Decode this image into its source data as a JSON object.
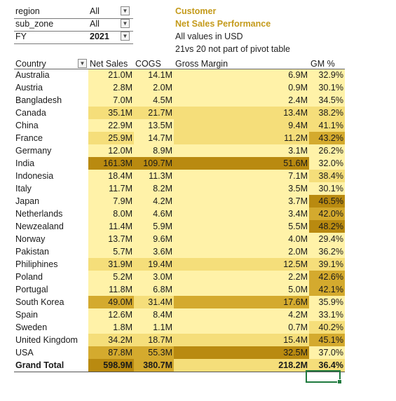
{
  "filters": [
    {
      "label": "region",
      "value": "All"
    },
    {
      "label": "sub_zone",
      "value": "All"
    },
    {
      "label": "FY",
      "value": "2021"
    }
  ],
  "titles": {
    "line1": "Customer",
    "line2": "Net Sales Performance",
    "note1": "All values in USD",
    "note2": "21vs 20 not part of pivot table"
  },
  "colors": {
    "low": "#fff2a8",
    "mid": "#f5de7a",
    "high": "#d4aa2e",
    "top": "#b98a10",
    "title": "#c49a1a"
  },
  "table": {
    "headers": {
      "country": "Country",
      "net_sales": "Net Sales",
      "cogs": "COGS",
      "gross_margin": "Gross Margin",
      "gm_pct": "GM %"
    },
    "rows": [
      {
        "country": "Australia",
        "net_sales": "21.0M",
        "cogs": "14.1M",
        "gross_margin": "6.9M",
        "gm_pct": "32.9%"
      },
      {
        "country": "Austria",
        "net_sales": "2.8M",
        "cogs": "2.0M",
        "gross_margin": "0.9M",
        "gm_pct": "30.1%"
      },
      {
        "country": "Bangladesh",
        "net_sales": "7.0M",
        "cogs": "4.5M",
        "gross_margin": "2.4M",
        "gm_pct": "34.5%"
      },
      {
        "country": "Canada",
        "net_sales": "35.1M",
        "cogs": "21.7M",
        "gross_margin": "13.4M",
        "gm_pct": "38.2%"
      },
      {
        "country": "China",
        "net_sales": "22.9M",
        "cogs": "13.5M",
        "gross_margin": "9.4M",
        "gm_pct": "41.1%"
      },
      {
        "country": "France",
        "net_sales": "25.9M",
        "cogs": "14.7M",
        "gross_margin": "11.2M",
        "gm_pct": "43.2%"
      },
      {
        "country": "Germany",
        "net_sales": "12.0M",
        "cogs": "8.9M",
        "gross_margin": "3.1M",
        "gm_pct": "26.2%"
      },
      {
        "country": "India",
        "net_sales": "161.3M",
        "cogs": "109.7M",
        "gross_margin": "51.6M",
        "gm_pct": "32.0%"
      },
      {
        "country": "Indonesia",
        "net_sales": "18.4M",
        "cogs": "11.3M",
        "gross_margin": "7.1M",
        "gm_pct": "38.4%"
      },
      {
        "country": "Italy",
        "net_sales": "11.7M",
        "cogs": "8.2M",
        "gross_margin": "3.5M",
        "gm_pct": "30.1%"
      },
      {
        "country": "Japan",
        "net_sales": "7.9M",
        "cogs": "4.2M",
        "gross_margin": "3.7M",
        "gm_pct": "46.5%"
      },
      {
        "country": "Netherlands",
        "net_sales": "8.0M",
        "cogs": "4.6M",
        "gross_margin": "3.4M",
        "gm_pct": "42.0%"
      },
      {
        "country": "Newzealand",
        "net_sales": "11.4M",
        "cogs": "5.9M",
        "gross_margin": "5.5M",
        "gm_pct": "48.2%"
      },
      {
        "country": "Norway",
        "net_sales": "13.7M",
        "cogs": "9.6M",
        "gross_margin": "4.0M",
        "gm_pct": "29.4%"
      },
      {
        "country": "Pakistan",
        "net_sales": "5.7M",
        "cogs": "3.6M",
        "gross_margin": "2.0M",
        "gm_pct": "36.2%"
      },
      {
        "country": "Philiphines",
        "net_sales": "31.9M",
        "cogs": "19.4M",
        "gross_margin": "12.5M",
        "gm_pct": "39.1%"
      },
      {
        "country": "Poland",
        "net_sales": "5.2M",
        "cogs": "3.0M",
        "gross_margin": "2.2M",
        "gm_pct": "42.6%"
      },
      {
        "country": "Portugal",
        "net_sales": "11.8M",
        "cogs": "6.8M",
        "gross_margin": "5.0M",
        "gm_pct": "42.1%"
      },
      {
        "country": "South Korea",
        "net_sales": "49.0M",
        "cogs": "31.4M",
        "gross_margin": "17.6M",
        "gm_pct": "35.9%"
      },
      {
        "country": "Spain",
        "net_sales": "12.6M",
        "cogs": "8.4M",
        "gross_margin": "4.2M",
        "gm_pct": "33.1%"
      },
      {
        "country": "Sweden",
        "net_sales": "1.8M",
        "cogs": "1.1M",
        "gross_margin": "0.7M",
        "gm_pct": "40.2%"
      },
      {
        "country": "United Kingdom",
        "net_sales": "34.2M",
        "cogs": "18.7M",
        "gross_margin": "15.4M",
        "gm_pct": "45.1%"
      },
      {
        "country": "USA",
        "net_sales": "87.8M",
        "cogs": "55.3M",
        "gross_margin": "32.5M",
        "gm_pct": "37.0%"
      }
    ],
    "total": {
      "country": "Grand Total",
      "net_sales": "598.9M",
      "cogs": "380.7M",
      "gross_margin": "218.2M",
      "gm_pct": "36.4%"
    }
  }
}
